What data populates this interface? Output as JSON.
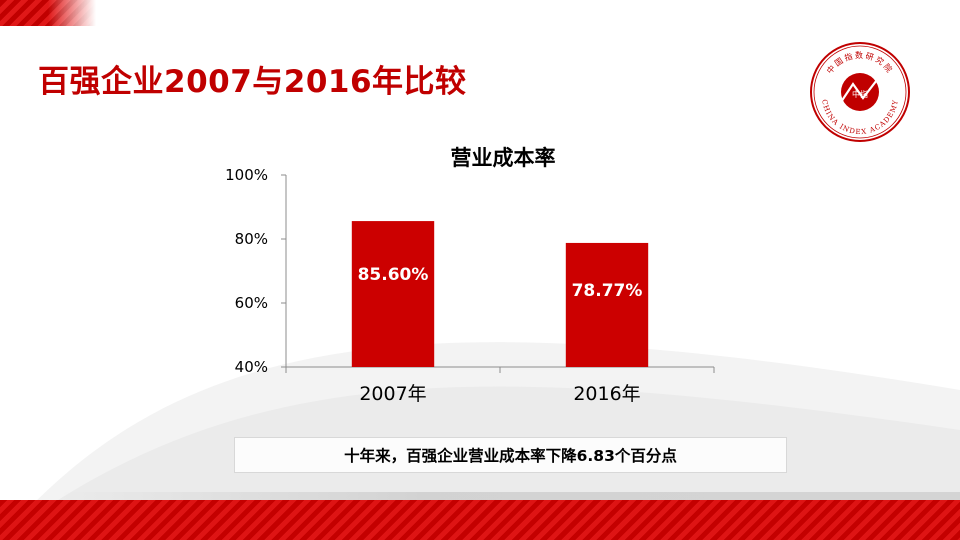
{
  "slide": {
    "title": "百强企业2007与2016年比较",
    "caption": "十年来，百强企业营业成本率下降6.83个百分点"
  },
  "logo": {
    "name": "china-index-academy-seal",
    "text_cn": "中国指数研究院",
    "text_en": "CHINA INDEX ACADEMY",
    "center_chars": "中指",
    "color": "#c00000"
  },
  "colors": {
    "accent": "#c00000",
    "bar": "#cc0000"
  },
  "chart_data": {
    "type": "bar",
    "title": "营业成本率",
    "categories": [
      "2007年",
      "2016年"
    ],
    "values": [
      85.6,
      78.77
    ],
    "data_labels": [
      "85.60%",
      "78.77%"
    ],
    "ylim": [
      40,
      100
    ],
    "yticks": [
      40,
      60,
      80,
      100
    ],
    "ytick_labels": [
      "40%",
      "60%",
      "80%",
      "100%"
    ],
    "xlabel": "",
    "ylabel": "",
    "grid": false,
    "legend": "none"
  }
}
